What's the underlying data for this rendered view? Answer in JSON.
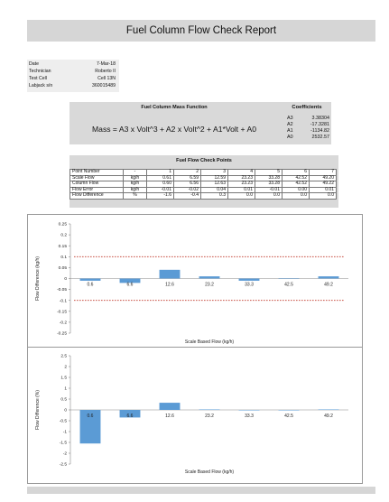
{
  "report": {
    "title": "Fuel Column Flow Check Report"
  },
  "info": [
    {
      "key": "Date",
      "value": "7-Mar-18"
    },
    {
      "key": "Technician",
      "value": "Roberto II"
    },
    {
      "key": "Test Cell",
      "value": "Cell 13N"
    },
    {
      "key": "Labjack s/n",
      "value": "360015489"
    }
  ],
  "mass_function": {
    "header": "Fuel Column Mass Function",
    "equation": "Mass  =  A3 x Volt^3  +  A2 x Volt^2  +  A1*Volt  +  A0"
  },
  "coefficients": {
    "header": "Coefficients",
    "items": [
      {
        "name": "A3",
        "value": "3.38304"
      },
      {
        "name": "A2",
        "value": "-17.3281"
      },
      {
        "name": "A1",
        "value": "-1134.82"
      },
      {
        "name": "A0",
        "value": "2532.57"
      }
    ]
  },
  "flow_check": {
    "header": "Fuel Flow Check Points",
    "rows": [
      {
        "label": "Point Number",
        "unit": "-",
        "cells": [
          "1",
          "2",
          "3",
          "4",
          "5",
          "6",
          "7"
        ]
      },
      {
        "label": "Scale Flow",
        "unit": "kg/h",
        "cells": [
          "0.61",
          "6.59",
          "12.59",
          "23.23",
          "33.28",
          "42.52",
          "49.20"
        ]
      },
      {
        "label": "Column Flow",
        "unit": "kg/h",
        "cells": [
          "0.60",
          "6.56",
          "12.63",
          "23.23",
          "33.28",
          "42.52",
          "49.22"
        ]
      },
      {
        "label": "Flow Error",
        "unit": "kg/h",
        "cells": [
          "-0.01",
          "-0.02",
          "0.04",
          "0.01",
          "-0.01",
          "0.00",
          "0.01"
        ]
      },
      {
        "label": "Flow Difference",
        "unit": "%",
        "cells": [
          "-1.6",
          "-0.4",
          "0.3",
          "0.0",
          "0.0",
          "0.0",
          "0.0"
        ]
      }
    ]
  },
  "chart_data": [
    {
      "type": "bar",
      "categories": [
        "0.6",
        "6.6",
        "12.6",
        "23.2",
        "33.3",
        "42.5",
        "49.2"
      ],
      "values": [
        -0.01,
        -0.02,
        0.04,
        0.01,
        -0.01,
        0.0,
        0.01
      ],
      "xlabel": "Scale Based Flow (kg/h)",
      "ylabel": "Flow Difference (kg/h)",
      "ylim": [
        -0.25,
        0.25
      ],
      "yticks": [
        "0.25",
        "0.2",
        "0.15",
        "0.1",
        "0.05",
        "0",
        "-0.05",
        "-0.1",
        "-0.15",
        "-0.2",
        "-0.25"
      ],
      "limit_lines": [
        0.1,
        -0.1
      ],
      "grid": false,
      "bar_color": "#5b9bd5",
      "limit_color": "#c0392b"
    },
    {
      "type": "bar",
      "categories": [
        "0.6",
        "6.6",
        "12.6",
        "23.2",
        "33.3",
        "42.5",
        "49.2"
      ],
      "values": [
        -1.55,
        -0.35,
        0.33,
        0.02,
        -0.02,
        0.0,
        0.02
      ],
      "xlabel": "Scale Based Flow (kg/h)",
      "ylabel": "Flow Difference (%)",
      "ylim": [
        -2.5,
        2.5
      ],
      "yticks": [
        "2.5",
        "2",
        "1.5",
        "1",
        "0.5",
        "0",
        "-0.5",
        "-1",
        "-1.5",
        "-2",
        "-2.5"
      ],
      "grid": false,
      "bar_color": "#5b9bd5"
    }
  ]
}
